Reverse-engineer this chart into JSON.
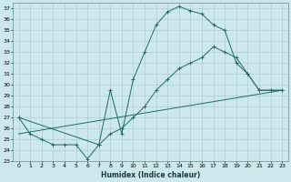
{
  "xlabel": "Humidex (Indice chaleur)",
  "bg_color": "#cce8ec",
  "grid_color": "#aacdd4",
  "line_color": "#1e6b60",
  "xlim": [
    -0.5,
    23.5
  ],
  "ylim": [
    23,
    37.5
  ],
  "xticks": [
    0,
    1,
    2,
    3,
    4,
    5,
    6,
    7,
    8,
    9,
    10,
    11,
    12,
    13,
    14,
    15,
    16,
    17,
    18,
    19,
    20,
    21,
    22,
    23
  ],
  "yticks": [
    23,
    24,
    25,
    26,
    27,
    28,
    29,
    30,
    31,
    32,
    33,
    34,
    35,
    36,
    37
  ],
  "line1_x": [
    0,
    1,
    2,
    3,
    4,
    5,
    6,
    7,
    8,
    9,
    10,
    11,
    12,
    13,
    14,
    15,
    16,
    17,
    18,
    19,
    20,
    21,
    22,
    23
  ],
  "line1_y": [
    27.0,
    25.5,
    25.0,
    24.5,
    24.5,
    24.5,
    23.2,
    24.5,
    29.5,
    25.5,
    30.5,
    33.0,
    35.5,
    36.7,
    37.2,
    36.8,
    36.5,
    35.5,
    35.0,
    32.0,
    31.0,
    29.5,
    29.5,
    29.5
  ],
  "line2_x": [
    0,
    7,
    8,
    9,
    10,
    11,
    12,
    13,
    14,
    15,
    16,
    17,
    18,
    19,
    20,
    21,
    22,
    23
  ],
  "line2_y": [
    27.0,
    24.5,
    25.5,
    26.0,
    27.0,
    28.0,
    29.5,
    30.5,
    31.5,
    32.0,
    32.5,
    33.5,
    33.0,
    32.5,
    31.0,
    29.5,
    29.5,
    29.5
  ],
  "line3_x": [
    0,
    23
  ],
  "line3_y": [
    25.5,
    29.5
  ]
}
